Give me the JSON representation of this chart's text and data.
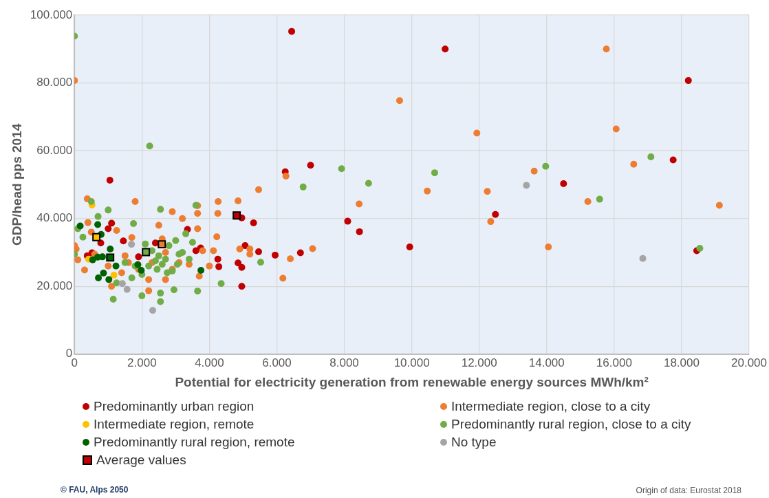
{
  "chart_data": {
    "type": "scatter",
    "xlabel": "Potential for electricity generation from renewable energy sources MWh/km²",
    "ylabel": "GDP/head pps 2014",
    "xlim": [
      0,
      20000
    ],
    "ylim": [
      0,
      100000
    ],
    "xticks": [
      {
        "value": 0,
        "label": "0"
      },
      {
        "value": 2000,
        "label": "2.000"
      },
      {
        "value": 4000,
        "label": "4.000"
      },
      {
        "value": 6000,
        "label": "6.000"
      },
      {
        "value": 8000,
        "label": "8.000"
      },
      {
        "value": 10000,
        "label": "10.000"
      },
      {
        "value": 12000,
        "label": "12.000"
      },
      {
        "value": 14000,
        "label": "14.000"
      },
      {
        "value": 16000,
        "label": "16.000"
      },
      {
        "value": 18000,
        "label": "18.000"
      },
      {
        "value": 20000,
        "label": "20.000"
      }
    ],
    "yticks": [
      {
        "value": 0,
        "label": "0"
      },
      {
        "value": 20000,
        "label": "20.000"
      },
      {
        "value": 40000,
        "label": "40.000"
      },
      {
        "value": 60000,
        "label": "60.000"
      },
      {
        "value": 80000,
        "label": "80.000"
      },
      {
        "value": 100000,
        "label": "100.000"
      }
    ],
    "grid": true,
    "legend": "bottom",
    "marker": "circle",
    "series": [
      {
        "name": "Predominantly urban region",
        "color": "#c00000",
        "x": [
          6440,
          10990,
          18200,
          6250,
          7000,
          1050,
          17750,
          14500,
          12480,
          8100,
          8450,
          9940,
          18450,
          5310,
          4960,
          6700,
          5950,
          4850,
          4960,
          4960,
          5060,
          4250,
          4280,
          3740,
          3600,
          3350,
          2400,
          1900,
          1450,
          1000,
          1100,
          380,
          780,
          520,
          5460
        ],
        "values": [
          95200,
          90000,
          80700,
          53800,
          55700,
          51300,
          57300,
          50300,
          41200,
          39200,
          36100,
          31600,
          30500,
          38700,
          40200,
          29900,
          29200,
          26900,
          25600,
          20000,
          32000,
          28000,
          25800,
          31300,
          30500,
          36800,
          32800,
          28700,
          33400,
          37000,
          38600,
          29000,
          32800,
          29900,
          30200
        ]
      },
      {
        "name": "Intermediate region, close to a city",
        "color": "#ed7d31",
        "x": [
          0,
          15770,
          9640,
          11930,
          16060,
          16580,
          13630,
          6270,
          5460,
          10460,
          12240,
          8440,
          15220,
          19120,
          12340,
          14050,
          7060,
          6400,
          6180,
          4850,
          4260,
          3650,
          3650,
          4250,
          4220,
          3650,
          4120,
          5200,
          5200,
          4900,
          380,
          0,
          1800,
          1250,
          1700,
          2600,
          2900,
          3200,
          2700,
          2900,
          2700,
          3400,
          3800,
          2200,
          2200,
          1500,
          1600,
          1900,
          1400,
          1100,
          1000,
          600,
          300,
          100,
          50,
          400,
          4000,
          3100,
          2300,
          500,
          2500,
          3700
        ],
        "values": [
          80700,
          90000,
          74800,
          65200,
          66400,
          56000,
          54000,
          52500,
          48500,
          48100,
          48000,
          44300,
          45000,
          43900,
          39100,
          31600,
          31100,
          28100,
          22400,
          45200,
          45000,
          43800,
          41500,
          41500,
          34600,
          37000,
          30500,
          31000,
          29500,
          31000,
          45800,
          32000,
          45000,
          36500,
          34400,
          34000,
          42000,
          40000,
          30000,
          25000,
          22000,
          26500,
          30500,
          22000,
          18700,
          29000,
          27000,
          25000,
          24000,
          20000,
          26000,
          29500,
          24800,
          27800,
          31000,
          38800,
          26000,
          27000,
          27000,
          36000,
          38000,
          23000
        ]
      },
      {
        "name": "Intermediate region, remote",
        "color": "#ffc000",
        "x": [
          520,
          420,
          1170
        ],
        "values": [
          44000,
          28000,
          23300
        ]
      },
      {
        "name": "Predominantly rural region, close to a city",
        "color": "#70ad47",
        "x": [
          0,
          2230,
          6780,
          7920,
          8720,
          10680,
          13970,
          17090,
          15570,
          18540,
          5520,
          4350,
          3650,
          2550,
          3600,
          1750,
          1000,
          500,
          700,
          250,
          100,
          0,
          2550,
          2550,
          2950,
          1150,
          2000,
          1250,
          1700,
          2100,
          2300,
          2500,
          2700,
          2800,
          3000,
          3200,
          3300,
          2200,
          2400,
          2600,
          2900,
          3100,
          3400,
          3500,
          1500,
          1800,
          2000,
          2450,
          2750,
          3050
        ],
        "values": [
          93800,
          61400,
          49300,
          54700,
          50400,
          53500,
          55400,
          58200,
          45700,
          31200,
          27100,
          20800,
          18600,
          42700,
          43900,
          38500,
          42500,
          45000,
          40600,
          34500,
          37000,
          29500,
          15500,
          18000,
          19000,
          16200,
          17200,
          21000,
          22500,
          32500,
          30500,
          29000,
          28000,
          32000,
          33500,
          30000,
          35500,
          26000,
          27500,
          26500,
          24500,
          29500,
          28000,
          33000,
          27000,
          26000,
          23500,
          25000,
          24000,
          26500
        ]
      },
      {
        "name": "Predominantly rural region, remote",
        "color": "#006100",
        "x": [
          170,
          690,
          790,
          1060,
          540,
          690,
          830,
          1230,
          1880,
          1980,
          860,
          710,
          1020,
          3750
        ],
        "values": [
          37800,
          38200,
          35300,
          31000,
          27800,
          28600,
          28700,
          26000,
          26400,
          24700,
          23900,
          22500,
          22000,
          24700
        ]
      },
      {
        "name": "No type",
        "color": "#a5a5a5",
        "x": [
          1690,
          1420,
          1560,
          2320,
          13400,
          16850
        ],
        "values": [
          32400,
          20800,
          19100,
          12900,
          49800,
          28200
        ]
      },
      {
        "name": "Average values",
        "color": "#000000",
        "marker": "square",
        "colors": [
          "#c00000",
          "#ed7d31",
          "#ffc000",
          "#70ad47",
          "#006100"
        ],
        "x": [
          4810,
          2590,
          650,
          2120,
          1060
        ],
        "values": [
          40900,
          32400,
          34500,
          30100,
          28500
        ]
      }
    ],
    "annotations": [
      "© FAU, Alps 2050",
      "Origin of data: Eurostat 2018"
    ]
  }
}
